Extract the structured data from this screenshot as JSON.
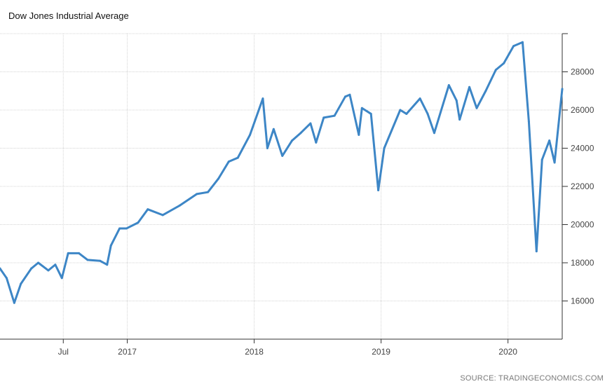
{
  "chart_data": {
    "type": "line",
    "title": "Dow Jones Industrial Average",
    "source": "SOURCE: TRADINGECONOMICS.COM",
    "xlabel": "",
    "ylabel": "",
    "ylim": [
      14000,
      30000
    ],
    "yticks": [
      16000,
      18000,
      20000,
      22000,
      24000,
      26000,
      28000
    ],
    "ytick_labels": [
      "16000",
      "18000",
      "20000",
      "22000",
      "24000",
      "26000",
      "28000"
    ],
    "xlim": [
      "2016-01-01",
      "2020-06-05"
    ],
    "xticks": [
      "2016-07-01",
      "2017-01-01",
      "2018-01-01",
      "2019-01-01",
      "2020-01-01"
    ],
    "xtick_labels": [
      "Jul",
      "2017",
      "2018",
      "2019",
      "2020"
    ],
    "grid": true,
    "colors": {
      "line": "#3d86c6",
      "grid": "#d4d4d4",
      "axis": "#333333"
    },
    "series": [
      {
        "x": [
          "2016-01-01",
          "2016-01-20",
          "2016-02-11",
          "2016-03-01",
          "2016-03-31",
          "2016-04-20",
          "2016-05-19",
          "2016-06-08",
          "2016-06-27",
          "2016-07-15",
          "2016-08-15",
          "2016-09-09",
          "2016-10-15",
          "2016-11-04",
          "2016-11-15",
          "2016-12-10",
          "2016-12-30",
          "2017-02-01",
          "2017-03-01",
          "2017-04-13",
          "2017-06-01",
          "2017-07-20",
          "2017-08-21",
          "2017-09-20",
          "2017-10-20",
          "2017-11-15",
          "2017-12-20",
          "2018-01-26",
          "2018-02-08",
          "2018-02-26",
          "2018-03-23",
          "2018-04-20",
          "2018-05-15",
          "2018-06-12",
          "2018-06-28",
          "2018-07-20",
          "2018-08-20",
          "2018-09-20",
          "2018-10-03",
          "2018-10-29",
          "2018-11-07",
          "2018-12-03",
          "2018-12-24",
          "2019-01-10",
          "2019-02-25",
          "2019-03-15",
          "2019-04-23",
          "2019-05-15",
          "2019-06-03",
          "2019-07-15",
          "2019-08-06",
          "2019-08-15",
          "2019-09-12",
          "2019-10-03",
          "2019-10-29",
          "2019-11-27",
          "2019-12-20",
          "2020-01-17",
          "2020-02-12",
          "2020-03-01",
          "2020-03-23",
          "2020-04-08",
          "2020-04-29",
          "2020-05-14",
          "2020-06-05"
        ],
        "values": [
          17700,
          17200,
          15900,
          16900,
          17700,
          18000,
          17600,
          17900,
          17200,
          18500,
          18500,
          18150,
          18100,
          17900,
          18900,
          19800,
          19800,
          20100,
          20800,
          20500,
          21000,
          21600,
          21700,
          22400,
          23300,
          23500,
          24700,
          26600,
          24000,
          25000,
          23600,
          24400,
          24800,
          25300,
          24300,
          25600,
          25700,
          26700,
          26800,
          24700,
          26100,
          25800,
          21800,
          24000,
          26000,
          25800,
          26600,
          25800,
          24800,
          27300,
          26500,
          25500,
          27200,
          26100,
          27000,
          28100,
          28450,
          29350,
          29550,
          25400,
          18600,
          23400,
          24400,
          23250,
          27100
        ]
      }
    ]
  }
}
